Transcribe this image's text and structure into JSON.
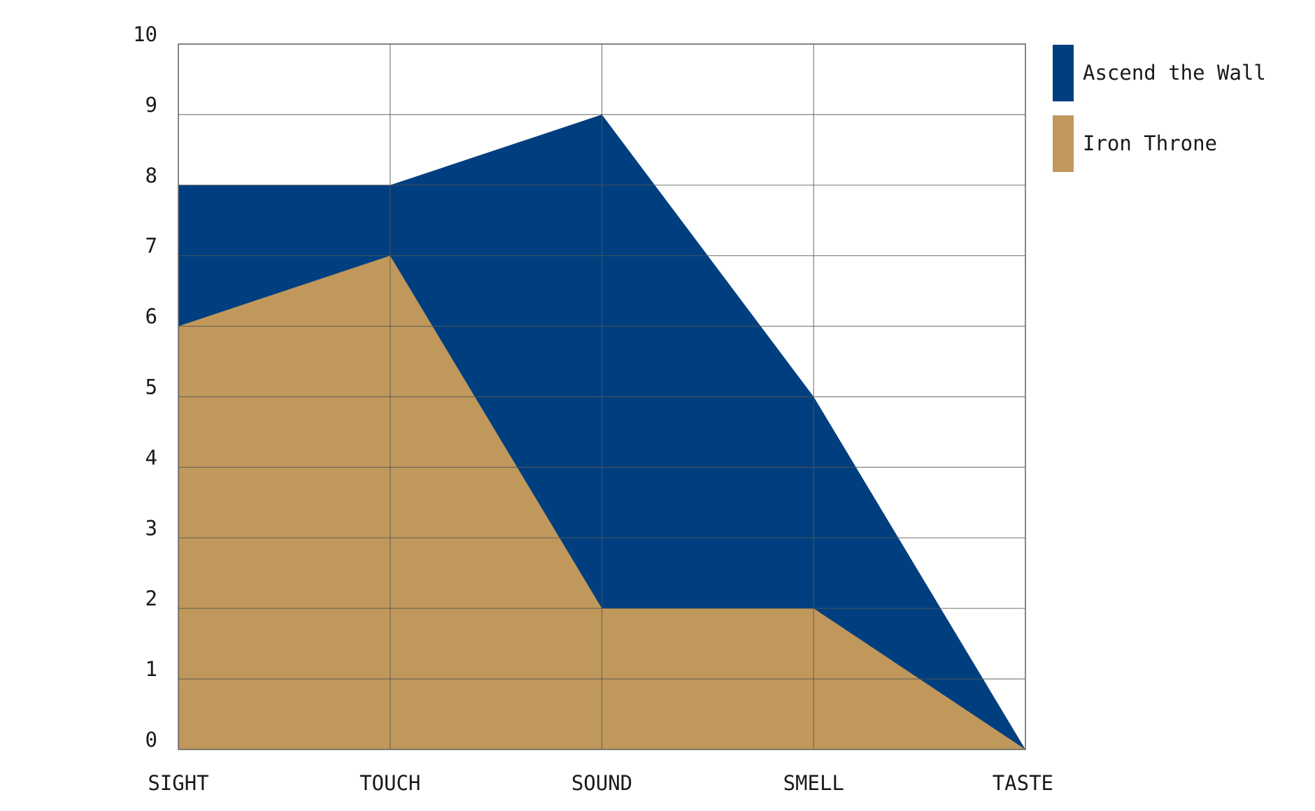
{
  "chart_data": {
    "type": "area",
    "stacked": false,
    "categories": [
      "SIGHT",
      "TOUCH",
      "SOUND",
      "SMELL",
      "TASTE"
    ],
    "series": [
      {
        "name": "Ascend the Wall",
        "values": [
          8,
          8,
          9,
          5,
          0
        ],
        "color": "#003f7f"
      },
      {
        "name": "Iron Throne",
        "values": [
          6,
          7,
          2,
          2,
          0
        ],
        "color": "#c0985b"
      }
    ],
    "y_ticks": [
      "0",
      "1",
      "2",
      "3",
      "4",
      "5",
      "6",
      "7",
      "8",
      "9",
      "10"
    ],
    "ylim": [
      0,
      10
    ],
    "grid": true,
    "legend": "right"
  }
}
